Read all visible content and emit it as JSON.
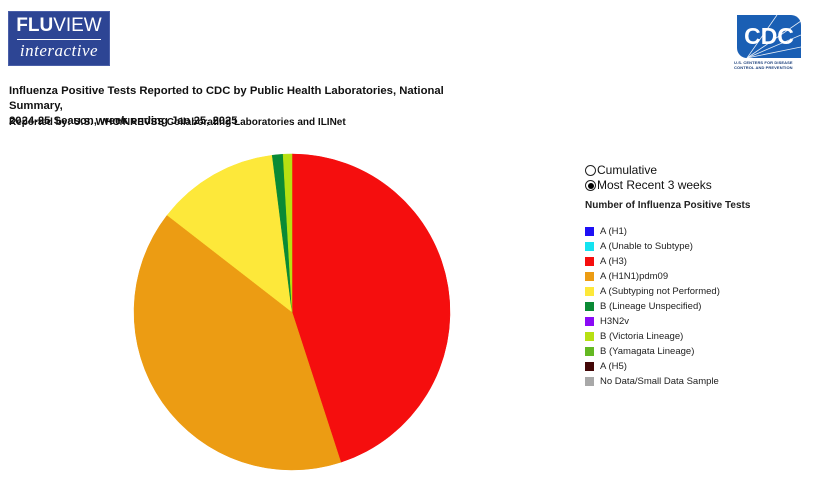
{
  "header": {
    "fluview_logo": {
      "word_bold": "FLU",
      "word_light": "VIEW",
      "sub": "interactive"
    },
    "cdc_logo": {
      "letters": "CDC",
      "caption_line1": "U.S. CENTERS FOR DISEASE",
      "caption_line2": "CONTROL AND PREVENTION"
    }
  },
  "title": {
    "line1": "Influenza Positive Tests Reported to CDC by Public Health Laboratories, National Summary,",
    "line2": "2024-25 Season, week ending Jan 25, 2025",
    "subtitle": "Reported by: U.S. WHO/NREVSS Collaborating Laboratories and ILINet"
  },
  "controls": {
    "radios": [
      {
        "label": "Cumulative",
        "checked": false
      },
      {
        "label": "Most Recent 3 weeks",
        "checked": true
      }
    ]
  },
  "legend": {
    "title": "Number of Influenza Positive Tests",
    "items": [
      {
        "label": "A (H1)",
        "color": "#1e10f5"
      },
      {
        "label": "A (Unable to Subtype)",
        "color": "#14e3f0"
      },
      {
        "label": "A (H3)",
        "color": "#f50e0e"
      },
      {
        "label": "A (H1N1)pdm09",
        "color": "#ec9c13"
      },
      {
        "label": "A (Subtyping not Performed)",
        "color": "#fde83a"
      },
      {
        "label": "B (Lineage Unspecified)",
        "color": "#0a8a35"
      },
      {
        "label": "H3N2v",
        "color": "#8a0af5"
      },
      {
        "label": "B (Victoria Lineage)",
        "color": "#b7e012"
      },
      {
        "label": "B (Yamagata Lineage)",
        "color": "#64b822"
      },
      {
        "label": "A (H5)",
        "color": "#430707"
      },
      {
        "label": "No Data/Small Data Sample",
        "color": "#a8a8a8"
      }
    ]
  },
  "chart_data": {
    "type": "pie",
    "title": "Influenza Positive Tests Reported to CDC by Public Health Laboratories, National Summary, 2024-25 Season, week ending Jan 25, 2025",
    "subtitle": "Reported by: U.S. WHO/NREVSS Collaborating Laboratories and ILINet",
    "view": "Most Recent 3 weeks",
    "units": "percent of influenza positive tests (estimated from slice angles)",
    "start_angle_deg": 0,
    "direction": "clockwise",
    "center": [
      292,
      312
    ],
    "radius": 158,
    "slices": [
      {
        "label": "A (H3)",
        "value": 45.0,
        "color": "#f50e0e"
      },
      {
        "label": "A (H1N1)pdm09",
        "value": 40.5,
        "color": "#ec9c13"
      },
      {
        "label": "A (Subtyping not Performed)",
        "value": 12.5,
        "color": "#fde83a"
      },
      {
        "label": "B (Lineage Unspecified)",
        "value": 1.1,
        "color": "#0a8a35"
      },
      {
        "label": "B (Victoria Lineage)",
        "value": 0.9,
        "color": "#b7e012"
      }
    ],
    "legend_position": "right"
  }
}
